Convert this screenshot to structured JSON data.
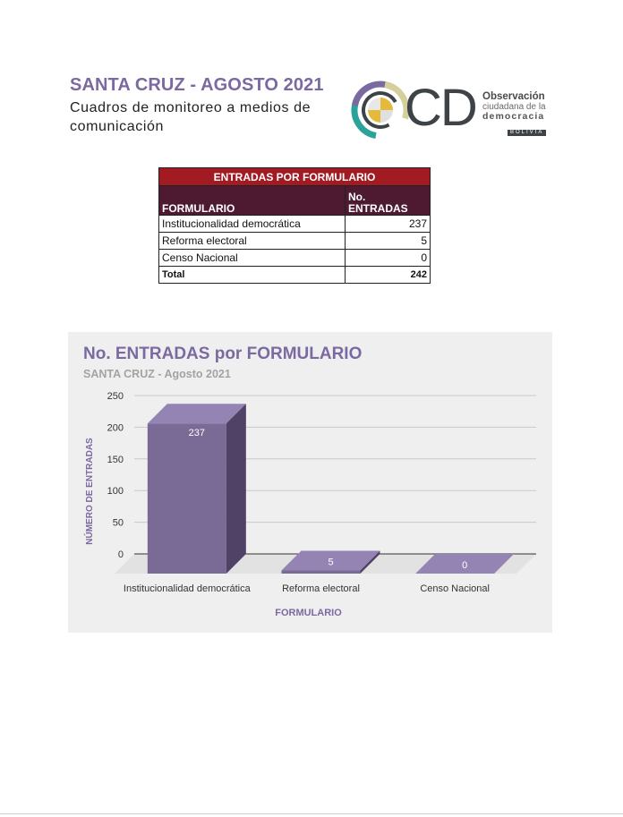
{
  "header": {
    "title": "SANTA CRUZ - AGOSTO 2021",
    "subtitle": "Cuadros de monitoreo a medios de comunicación"
  },
  "logo": {
    "letters": "CD",
    "line1": "Observación",
    "line2": "ciudadana de la",
    "line3": "democracia",
    "line4": "BOLIVIA",
    "colors": [
      "#e5b93a",
      "#7b6aa1",
      "#2ba39a",
      "#d9d9d9"
    ]
  },
  "table": {
    "caption": "ENTRADAS POR FORMULARIO",
    "columns": [
      "FORMULARIO",
      "No. ENTRADAS"
    ],
    "rows": [
      {
        "formulario": "Institucionalidad democrática",
        "entradas": "237"
      },
      {
        "formulario": "Reforma electoral",
        "entradas": "5"
      },
      {
        "formulario": "Censo Nacional",
        "entradas": "0"
      }
    ],
    "total_label": "Total",
    "total_value": "242",
    "caption_color": "#a21a22",
    "header_color": "#4d1a32"
  },
  "chart_data": {
    "type": "bar",
    "title": "No. ENTRADAS por FORMULARIO",
    "subtitle": "SANTA CRUZ - Agosto 2021",
    "xlabel": "FORMULARIO",
    "ylabel": "NÚMERO DE ENTRADAS",
    "categories": [
      "Institucionalidad democrática",
      "Reforma electoral",
      "Censo Nacional"
    ],
    "values": [
      237,
      5,
      0
    ],
    "ylim": [
      0,
      250
    ],
    "yticks": [
      0,
      50,
      100,
      150,
      200,
      250
    ],
    "grid": true,
    "style": "3d",
    "bar_color": "#7a6a96"
  }
}
